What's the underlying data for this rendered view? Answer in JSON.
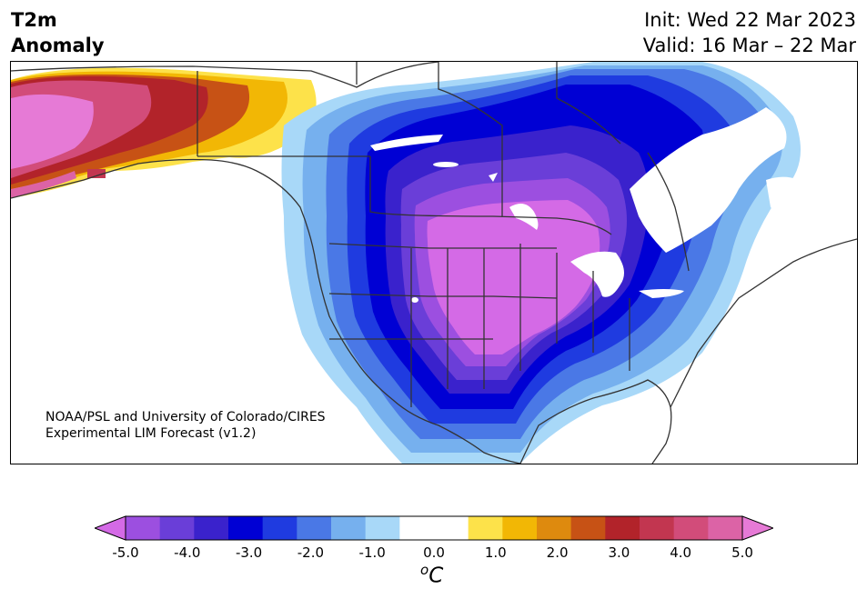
{
  "title": {
    "line1": "T2m",
    "line2": "Anomaly"
  },
  "dates": {
    "init": "Init: Wed 22 Mar 2023",
    "valid": "Valid: 16 Mar – 22 Mar"
  },
  "credit": {
    "line1": "NOAA/PSL and University of Colorado/CIRES",
    "line2": "Experimental LIM Forecast (v1.2)"
  },
  "colorbar": {
    "ticks": [
      "-5.0",
      "-4.0",
      "-3.0",
      "-2.0",
      "-1.0",
      "0.0",
      "1.0",
      "2.0",
      "3.0",
      "4.0",
      "5.0"
    ],
    "units_base": "C",
    "units_sup": "o",
    "colors": [
      "#d46ae6",
      "#9c4fe0",
      "#6a3ed8",
      "#3a22cc",
      "#0000d4",
      "#1f3be0",
      "#4a78e6",
      "#76b0ee",
      "#a8d8f8",
      "#ffffff",
      "#ffffff",
      "#fde24a",
      "#f2b705",
      "#de8a0e",
      "#c75215",
      "#b2232a",
      "#c23650",
      "#d24c7a",
      "#dc63a6",
      "#e67ad6"
    ]
  },
  "map": {
    "region": "North America",
    "variable": "2 m temperature anomaly",
    "features": [
      "cold-anomaly-core-central-us",
      "warm-anomaly-alaska"
    ]
  }
}
